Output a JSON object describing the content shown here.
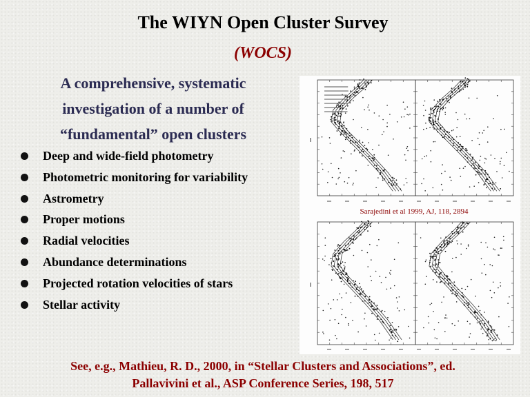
{
  "slide": {
    "title": "The WIYN Open Cluster Survey",
    "subtitle": "(WOCS)",
    "intro_lines": [
      "A comprehensive, systematic",
      "investigation of a number of",
      "“fundamental” open clusters"
    ],
    "bullets": [
      "Deep and wide-field photometry",
      "Photometric monitoring for variability",
      "Astrometry",
      "Proper motions",
      "Radial velocities",
      "Abundance determinations",
      "Projected rotation velocities of stars",
      "Stellar activity"
    ],
    "figure": {
      "icon": "color-magnitude-diagrams",
      "citation": "Sarajedini et al 1999, AJ, 118, 2894"
    },
    "footer_lines": [
      "See, e.g., Mathieu, R. D., 2000, in “Stellar Clusters and Associations”, ed.",
      "Pallavivini et al., ASP Conference Series, 198, 517"
    ],
    "colors": {
      "accent": "#8b0000",
      "intro": "#2b2b52",
      "text": "#000000"
    }
  }
}
